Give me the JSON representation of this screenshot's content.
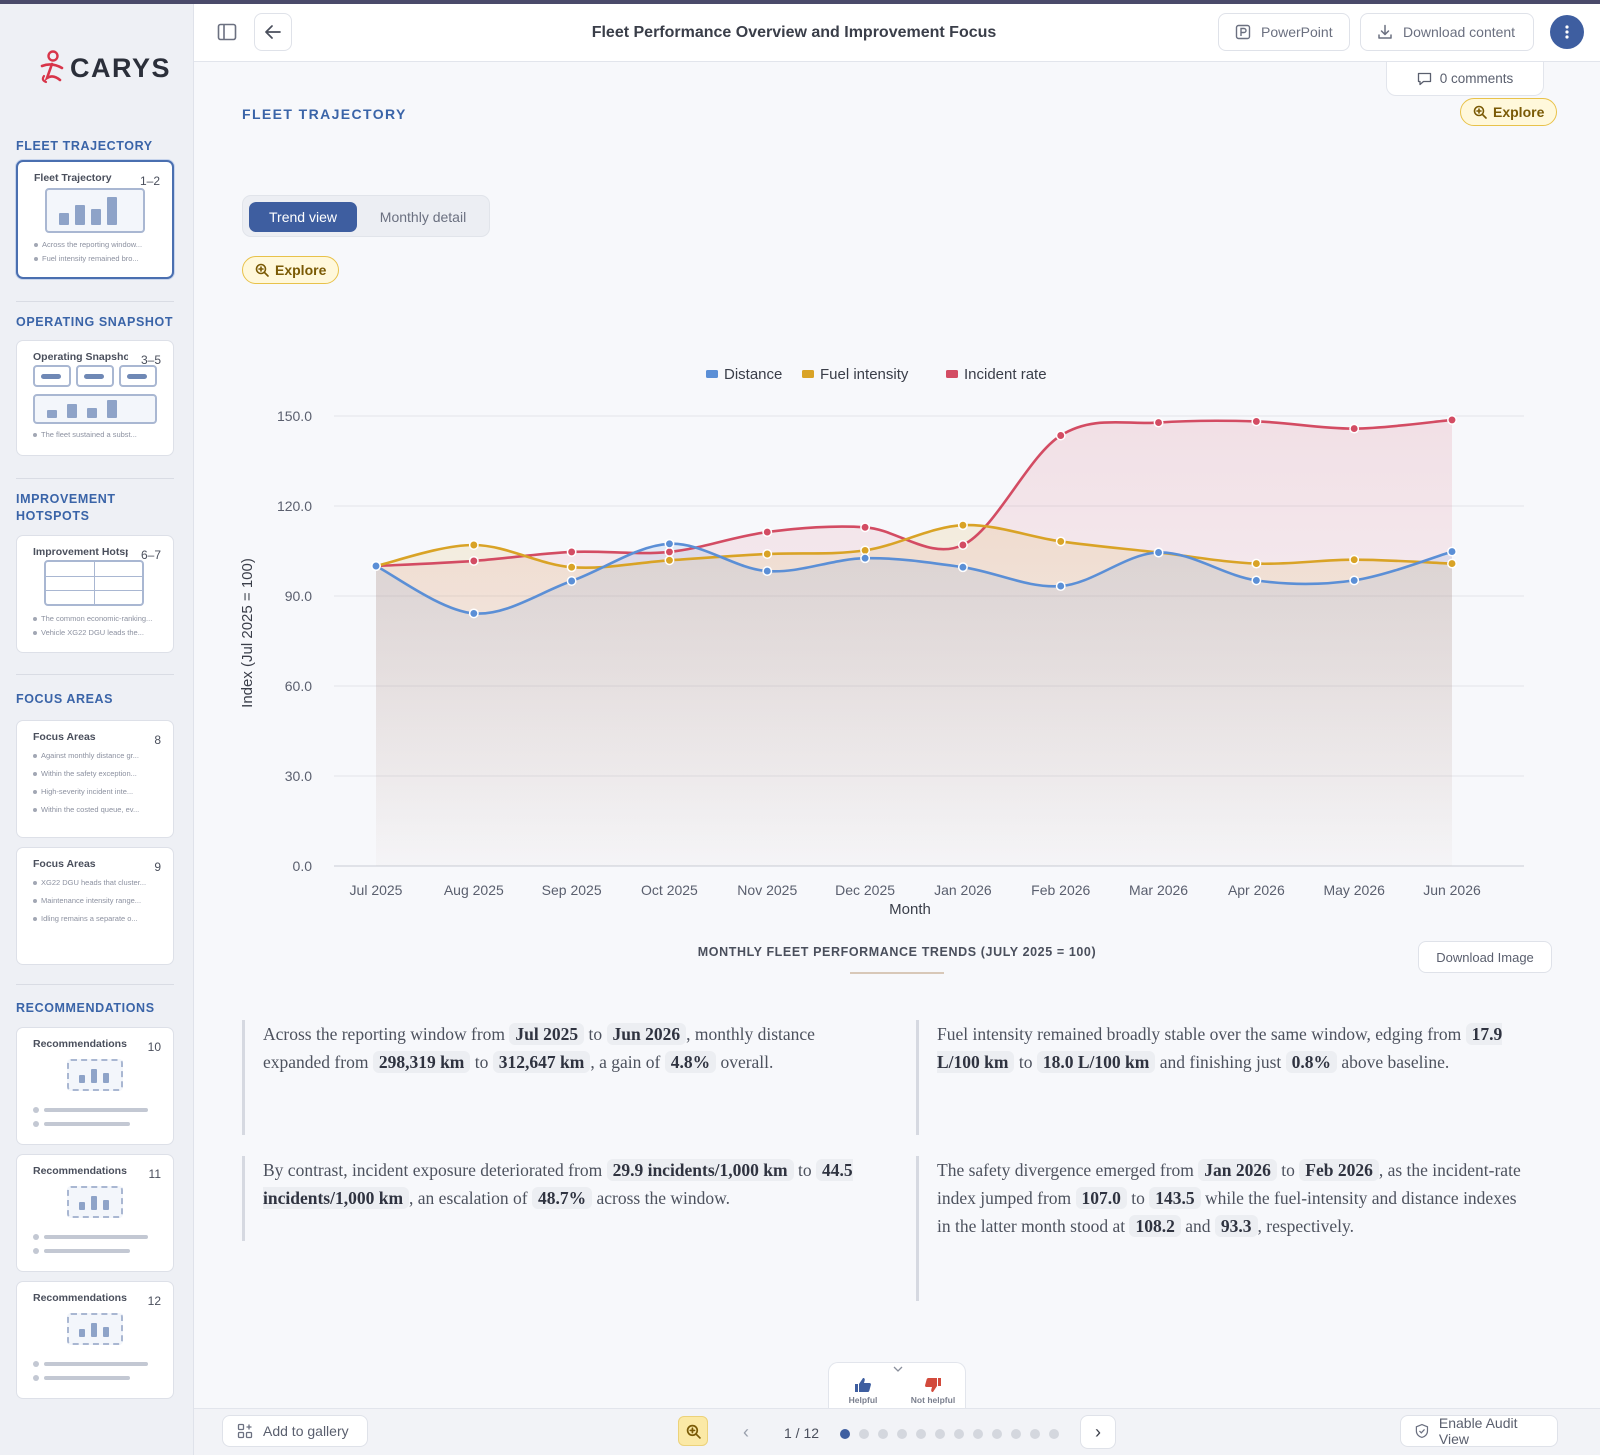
{
  "app": {
    "brand": "CARYS",
    "brand_color": "#3e5ea0",
    "accent_color": "#d8354a"
  },
  "header": {
    "title": "Fleet Performance Overview and Improvement Focus",
    "powerpoint_label": "PowerPoint",
    "download_label": "Download content"
  },
  "comments": {
    "label": "0 comments"
  },
  "sidebar": {
    "sections": [
      {
        "title": "FLEET TRAJECTORY"
      },
      {
        "title": "OPERATING SNAPSHOT"
      },
      {
        "title": "IMPROVEMENT HOTSPOTS"
      },
      {
        "title": "FOCUS AREAS"
      },
      {
        "title": "RECOMMENDATIONS"
      }
    ],
    "thumbs": [
      {
        "title": "Fleet Trajectory",
        "num": "1–2",
        "bullets": [
          "Across the reporting window...",
          "Fuel intensity remained bro..."
        ]
      },
      {
        "title": "Operating Snapshot",
        "num": "3–5",
        "bullets": [
          "The fleet sustained a subst..."
        ]
      },
      {
        "title": "Improvement Hotsp...",
        "num": "6–7",
        "bullets": [
          "The common economic-ranking...",
          "Vehicle XG22 DGU leads the..."
        ]
      },
      {
        "title": "Focus Areas",
        "num": "8",
        "bullets": [
          "Against monthly distance gr...",
          "Within the safety exception...",
          "High-severity incident inte...",
          "Within the costed queue, ev..."
        ]
      },
      {
        "title": "Focus Areas",
        "num": "9",
        "bullets": [
          "XG22 DGU heads that cluster...",
          "Maintenance intensity range...",
          "Idling remains a separate o..."
        ]
      },
      {
        "title": "Recommendations",
        "num": "10"
      },
      {
        "title": "Recommendations",
        "num": "11"
      },
      {
        "title": "Recommendations",
        "num": "12"
      }
    ]
  },
  "main": {
    "section_label": "FLEET TRAJECTORY",
    "explore_label": "Explore",
    "toggle": {
      "active": "Trend view",
      "inactive": "Monthly detail"
    },
    "chart_caption": "MONTHLY FLEET PERFORMANCE TRENDS (JULY 2025 = 100)",
    "download_image": "Download Image"
  },
  "chart_data": {
    "type": "line",
    "xlabel": "Month",
    "ylabel": "Index (Jul 2025 = 100)",
    "ylim": [
      0,
      150
    ],
    "yticks": [
      "0.0",
      "30.0",
      "60.0",
      "90.0",
      "120.0",
      "150.0"
    ],
    "grid": true,
    "legend_position": "top-center",
    "categories": [
      "Jul 2025",
      "Aug 2025",
      "Sep 2025",
      "Oct 2025",
      "Nov 2025",
      "Dec 2025",
      "Jan 2026",
      "Feb 2026",
      "Mar 2026",
      "Apr 2026",
      "May 2026",
      "Jun 2026"
    ],
    "series": [
      {
        "name": "Distance",
        "color": "#5b8fd6",
        "values": [
          100,
          84.2,
          95,
          107.4,
          98.3,
          102.6,
          99.6,
          93.3,
          104.5,
          95.2,
          95.2,
          104.8
        ]
      },
      {
        "name": "Fuel intensity",
        "color": "#d9a326",
        "values": [
          100,
          107,
          99.6,
          101.9,
          104,
          105.2,
          113.6,
          108.2,
          104.5,
          100.8,
          102.1,
          100.8
        ]
      },
      {
        "name": "Incident rate",
        "color": "#d34c63",
        "values": [
          100,
          101.7,
          104.7,
          104.7,
          111.3,
          112.9,
          107,
          143.5,
          147.8,
          148.2,
          145.8,
          148.7
        ]
      }
    ]
  },
  "insights": {
    "p1": {
      "t1": "Across the reporting window from",
      "v1": "Jul 2025",
      "t2": "to",
      "v2": "Jun 2026",
      "t3": ", monthly distance expanded from",
      "v3": "298,319 km",
      "t4": "to",
      "v4": "312,647 km",
      "t5": ", a gain of",
      "v5": "4.8%",
      "t6": "overall."
    },
    "p2": {
      "t1": "Fuel intensity remained broadly stable over the same window, edging from",
      "v1": "17.9 L/100 km",
      "t2": "to",
      "v2": "18.0 L/100 km",
      "t3": "and finishing just",
      "v3": "0.8%",
      "t4": "above baseline."
    },
    "p3": {
      "t1": "By contrast, incident exposure deteriorated from",
      "v1": "29.9 incidents/1,000 km",
      "t2": "to",
      "v2": "44.5 incidents/1,000 km",
      "t3": ", an escalation of",
      "v3": "48.7%",
      "t4": "across the window."
    },
    "p4": {
      "t1": "The safety divergence emerged from",
      "v1": "Jan 2026",
      "t2": "to",
      "v2": "Feb 2026",
      "t3": ", as the incident-rate index jumped from",
      "v3": "107.0",
      "t4": "to",
      "v4": "143.5",
      "t5": "while the fuel-intensity and distance indexes in the latter month stood at",
      "v5": "108.2",
      "t6": "and",
      "v6": "93.3",
      "t7": ", respectively."
    }
  },
  "feedback": {
    "helpful": "Helpful",
    "not_helpful": "Not helpful"
  },
  "footer": {
    "add_gallery": "Add to gallery",
    "pager": "1 / 12",
    "audit": "Enable Audit View",
    "page_count": 12,
    "current_page": 1
  }
}
